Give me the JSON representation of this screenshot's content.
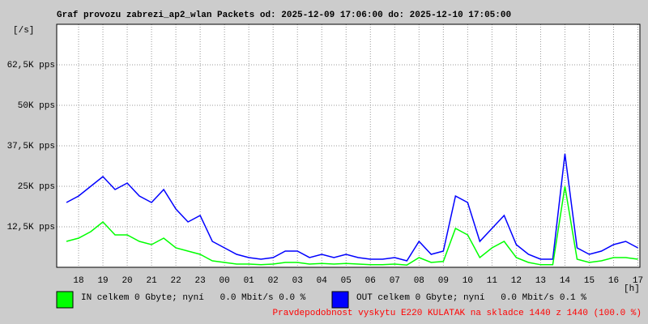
{
  "chart_data": {
    "type": "line",
    "title": "Graf provozu zabrezi_ap2_wlan Packets od: 2025-12-09 17:06:00 do: 2025-12-10 17:05:00",
    "y_label": "[/s]",
    "x_label": "[h]",
    "footer": "Pravdepodobnost vyskytu E220 KULATAK na skladce 1440 z 1440 (100.0 %)",
    "xlim": [
      17.1,
      41.083
    ],
    "ylim": [
      0,
      75000
    ],
    "grid": true,
    "xticks": [
      {
        "value": 18,
        "label": "18"
      },
      {
        "value": 19,
        "label": "19"
      },
      {
        "value": 20,
        "label": "20"
      },
      {
        "value": 21,
        "label": "21"
      },
      {
        "value": 22,
        "label": "22"
      },
      {
        "value": 23,
        "label": "23"
      },
      {
        "value": 24,
        "label": "00"
      },
      {
        "value": 25,
        "label": "01"
      },
      {
        "value": 26,
        "label": "02"
      },
      {
        "value": 27,
        "label": "03"
      },
      {
        "value": 28,
        "label": "04"
      },
      {
        "value": 29,
        "label": "05"
      },
      {
        "value": 30,
        "label": "06"
      },
      {
        "value": 31,
        "label": "07"
      },
      {
        "value": 32,
        "label": "08"
      },
      {
        "value": 33,
        "label": "09"
      },
      {
        "value": 34,
        "label": "10"
      },
      {
        "value": 35,
        "label": "11"
      },
      {
        "value": 36,
        "label": "12"
      },
      {
        "value": 37,
        "label": "13"
      },
      {
        "value": 38,
        "label": "14"
      },
      {
        "value": 39,
        "label": "15"
      },
      {
        "value": 40,
        "label": "16"
      },
      {
        "value": 41,
        "label": "17"
      }
    ],
    "yticks": [
      {
        "value": 12500,
        "label": "12,5K pps"
      },
      {
        "value": 25000,
        "label": "25K pps"
      },
      {
        "value": 37500,
        "label": "37,5K pps"
      },
      {
        "value": 50000,
        "label": "50K pps"
      },
      {
        "value": 62500,
        "label": "62,5K pps"
      }
    ],
    "x": [
      17.5,
      18,
      18.5,
      19,
      19.5,
      20,
      20.5,
      21,
      21.5,
      22,
      22.5,
      23,
      23.5,
      24,
      24.5,
      25,
      25.5,
      26,
      26.5,
      27,
      27.5,
      28,
      28.5,
      29,
      29.5,
      30,
      30.5,
      31,
      31.5,
      32,
      32.5,
      33,
      33.5,
      34,
      34.5,
      35,
      35.5,
      36,
      36.5,
      37,
      37.5,
      38,
      38.5,
      39,
      39.5,
      40,
      40.5,
      41
    ],
    "series": [
      {
        "name": "IN celkem 0 Gbyte; nyní   0.0 Mbit/s 0.0 %",
        "color": "#00ff00",
        "values": [
          8000,
          9000,
          11000,
          14000,
          10000,
          10000,
          8000,
          7000,
          9000,
          6000,
          5000,
          4000,
          2000,
          1500,
          1000,
          1000,
          800,
          1000,
          1500,
          1500,
          1000,
          1200,
          1000,
          1200,
          1000,
          800,
          800,
          1000,
          700,
          3000,
          1500,
          1800,
          12000,
          10000,
          3000,
          6000,
          8000,
          3000,
          1500,
          800,
          800,
          25000,
          2500,
          1500,
          2000,
          3000,
          3000,
          2500
        ]
      },
      {
        "name": "OUT celkem 0 Gbyte; nyní   0.0 Mbit/s 0.1 %",
        "color": "#0000ff",
        "values": [
          20000,
          22000,
          25000,
          28000,
          24000,
          26000,
          22000,
          20000,
          24000,
          18000,
          14000,
          16000,
          8000,
          6000,
          4000,
          3000,
          2500,
          3000,
          5000,
          5000,
          3000,
          4000,
          3000,
          4000,
          3000,
          2500,
          2500,
          3000,
          2000,
          8000,
          4000,
          5000,
          22000,
          20000,
          8000,
          12000,
          16000,
          7000,
          4000,
          2500,
          2500,
          35000,
          6000,
          4000,
          5000,
          7000,
          8000,
          6000
        ]
      }
    ]
  }
}
